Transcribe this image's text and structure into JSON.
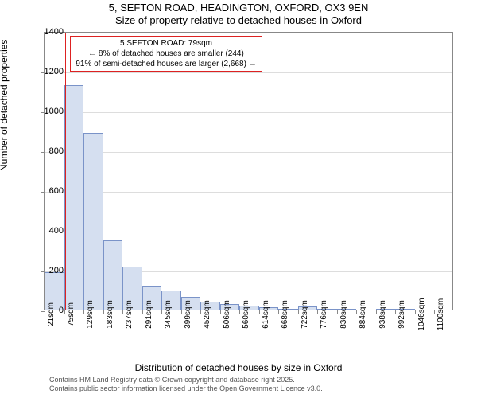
{
  "title": {
    "line1": "5, SEFTON ROAD, HEADINGTON, OXFORD, OX3 9EN",
    "line2": "Size of property relative to detached houses in Oxford"
  },
  "chart": {
    "type": "histogram",
    "ylabel": "Number of detached properties",
    "xlabel": "Distribution of detached houses by size in Oxford",
    "ylim": [
      0,
      1400
    ],
    "ytick_step": 200,
    "bar_fill": "#d5dff0",
    "bar_stroke": "#7a93c8",
    "grid_color": "#dddddd",
    "border_color": "#888888",
    "marker_color": "#dd2222",
    "marker_x_sqm": 79,
    "xticks": [
      "21sqm",
      "75sqm",
      "129sqm",
      "183sqm",
      "237sqm",
      "291sqm",
      "345sqm",
      "399sqm",
      "452sqm",
      "506sqm",
      "560sqm",
      "614sqm",
      "668sqm",
      "722sqm",
      "776sqm",
      "830sqm",
      "884sqm",
      "938sqm",
      "992sqm",
      "1046sqm",
      "1100sqm"
    ],
    "bin_start_sqm": 21,
    "bin_width_sqm": 54,
    "values": [
      190,
      1130,
      890,
      350,
      215,
      120,
      95,
      65,
      40,
      30,
      22,
      12,
      5,
      15,
      4,
      2,
      0,
      2,
      2,
      0,
      0
    ],
    "info_box": {
      "line1": "5 SEFTON ROAD: 79sqm",
      "line2": "← 8% of detached houses are smaller (244)",
      "line3": "91% of semi-detached houses are larger (2,668) →",
      "border_color": "#dd2222"
    }
  },
  "footer": {
    "line1": "Contains HM Land Registry data © Crown copyright and database right 2025.",
    "line2": "Contains public sector information licensed under the Open Government Licence v3.0."
  }
}
